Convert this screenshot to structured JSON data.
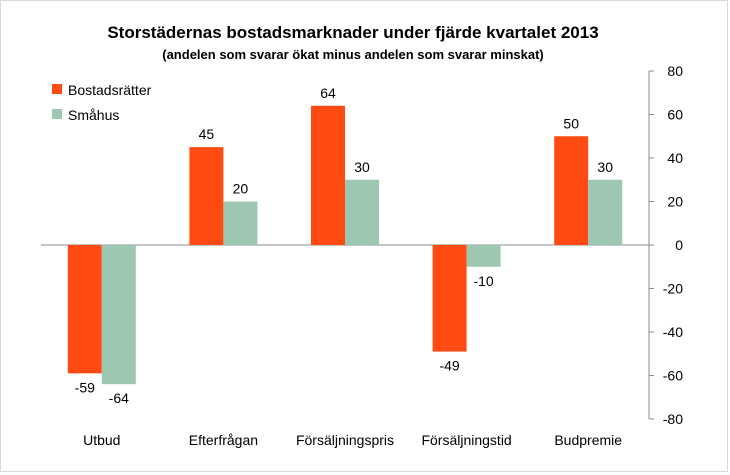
{
  "chart_data": {
    "type": "bar",
    "title": "Storstädernas bostadsmarknader under fjärde kvartalet 2013",
    "subtitle": "(andelen som svarar ökat minus andelen som svarar minskat)",
    "categories": [
      "Utbud",
      "Efterfrågan",
      "Försäljningspris",
      "Försäljningstid",
      "Budpremie"
    ],
    "series": [
      {
        "name": "Bostadsrätter",
        "color": "#FF4A12",
        "values": [
          -59,
          45,
          64,
          -49,
          50
        ]
      },
      {
        "name": "Småhus",
        "color": "#9DC7B1",
        "values": [
          -64,
          20,
          30,
          -10,
          30
        ]
      }
    ],
    "ylim": [
      -80,
      80
    ],
    "yticks": [
      80,
      60,
      40,
      20,
      0,
      -20,
      -40,
      -60,
      -80
    ],
    "y_axis_side": "right",
    "legend_position": "top-left",
    "grid": false
  }
}
